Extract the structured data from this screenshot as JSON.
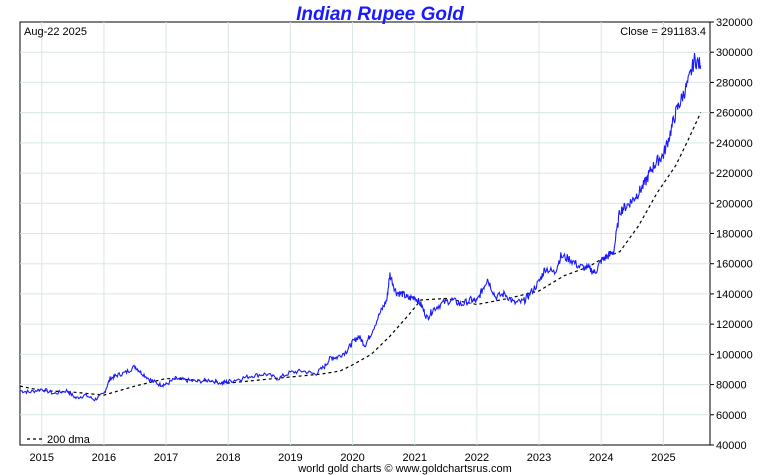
{
  "chart_data": {
    "type": "line",
    "title": "Indian Rupee Gold",
    "date_label": "Aug-22  2025",
    "close_label": "Close = 291183.4",
    "legend_label": "200 dma",
    "footer": "world gold charts © www.goldchartsrus.com",
    "x_ticks": [
      "2015",
      "2016",
      "2017",
      "2018",
      "2019",
      "2020",
      "2021",
      "2022",
      "2023",
      "2024",
      "2025"
    ],
    "y_ticks": [
      "40000",
      "60000",
      "80000",
      "100000",
      "120000",
      "140000",
      "160000",
      "180000",
      "200000",
      "220000",
      "240000",
      "260000",
      "280000",
      "300000",
      "320000"
    ],
    "xlim": [
      2014.65,
      2025.75
    ],
    "ylim": [
      40000,
      320000
    ],
    "grid": true,
    "legend_position": "bottom-left",
    "colors": {
      "price": "#1a1aff",
      "dma": "#000000",
      "title": "#1a1aff"
    },
    "series": [
      {
        "name": "price",
        "style": "solid",
        "x": [
          2014.65,
          2014.8,
          2015.0,
          2015.2,
          2015.4,
          2015.55,
          2015.7,
          2015.85,
          2016.0,
          2016.1,
          2016.2,
          2016.35,
          2016.5,
          2016.6,
          2016.75,
          2016.9,
          2017.0,
          2017.15,
          2017.3,
          2017.5,
          2017.7,
          2017.9,
          2018.0,
          2018.2,
          2018.4,
          2018.6,
          2018.8,
          2019.0,
          2019.2,
          2019.4,
          2019.55,
          2019.65,
          2019.75,
          2019.9,
          2020.0,
          2020.1,
          2020.2,
          2020.3,
          2020.45,
          2020.55,
          2020.6,
          2020.7,
          2020.8,
          2020.9,
          2021.0,
          2021.1,
          2021.2,
          2021.3,
          2021.45,
          2021.6,
          2021.75,
          2021.9,
          2022.0,
          2022.1,
          2022.17,
          2022.3,
          2022.45,
          2022.6,
          2022.75,
          2022.85,
          2023.0,
          2023.1,
          2023.25,
          2023.35,
          2023.5,
          2023.65,
          2023.8,
          2023.9,
          2024.0,
          2024.1,
          2024.2,
          2024.3,
          2024.4,
          2024.5,
          2024.6,
          2024.7,
          2024.8,
          2024.9,
          2025.0,
          2025.1,
          2025.2,
          2025.3,
          2025.4,
          2025.5,
          2025.6
        ],
        "y": [
          76000,
          75000,
          77000,
          74000,
          76000,
          71000,
          73000,
          70000,
          74000,
          84000,
          86000,
          88000,
          92000,
          88000,
          83000,
          80000,
          80000,
          84000,
          83000,
          82000,
          83000,
          81000,
          82000,
          84000,
          86000,
          87000,
          84000,
          88000,
          89000,
          87000,
          92000,
          98000,
          98000,
          102000,
          108000,
          112000,
          106000,
          114000,
          128000,
          136000,
          153000,
          141000,
          140000,
          137000,
          138000,
          133000,
          124000,
          130000,
          134000,
          136000,
          133000,
          136000,
          135000,
          144000,
          150000,
          138000,
          140000,
          134000,
          135000,
          140000,
          148000,
          157000,
          154000,
          165000,
          163000,
          158000,
          157000,
          154000,
          162000,
          165000,
          168000,
          195000,
          198000,
          202000,
          207000,
          213000,
          222000,
          228000,
          232000,
          245000,
          260000,
          270000,
          280000,
          295000,
          291183
        ]
      },
      {
        "name": "200 dma",
        "style": "dashed",
        "x": [
          2014.65,
          2015.0,
          2015.5,
          2016.0,
          2016.5,
          2017.0,
          2017.5,
          2018.0,
          2018.5,
          2019.0,
          2019.5,
          2019.8,
          2020.0,
          2020.3,
          2020.6,
          2020.9,
          2021.1,
          2021.5,
          2022.0,
          2022.5,
          2023.0,
          2023.4,
          2023.8,
          2024.0,
          2024.3,
          2024.6,
          2024.9,
          2025.2,
          2025.4,
          2025.6
        ],
        "y": [
          79000,
          76000,
          75000,
          73000,
          79000,
          84000,
          83000,
          81000,
          83000,
          85000,
          87000,
          89000,
          93000,
          100000,
          112000,
          126000,
          136000,
          137000,
          133000,
          137000,
          142000,
          152000,
          158000,
          163000,
          168000,
          185000,
          207000,
          225000,
          242000,
          260000
        ]
      }
    ]
  }
}
